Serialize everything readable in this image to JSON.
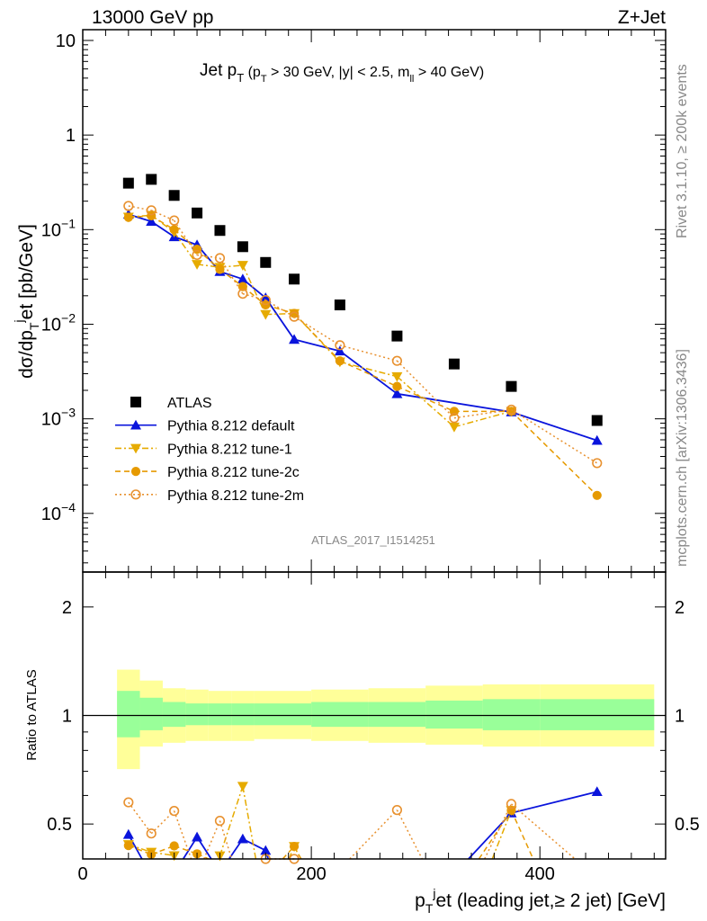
{
  "header": {
    "left": "13000 GeV pp",
    "right": "Z+Jet"
  },
  "side_text": {
    "top": "Rivet 3.1.10, ≥ 200k events",
    "bottom": "mcplots.cern.ch [arXiv:1306.3436]"
  },
  "watermark": "ATLAS_2017_I1514251",
  "title_parts": [
    {
      "t": "Jet p",
      "s": "n"
    },
    {
      "t": "T",
      "s": "sub"
    },
    {
      "t": " (p",
      "s": "n2"
    },
    {
      "t": "T",
      "s": "sub2"
    },
    {
      "t": " > 30 GeV, |y| < 2.5, m",
      "s": "n2"
    },
    {
      "t": "ll",
      "s": "sub2"
    },
    {
      "t": " > 40 GeV)",
      "s": "n2"
    }
  ],
  "chart_data": [
    {
      "type": "scatter",
      "panel": "main",
      "ylabel_parts": [
        "dσ/dp",
        "T",
        "j",
        "et [pb/GeV]"
      ],
      "yscale": "log",
      "ylim": [
        2.4e-05,
        13
      ],
      "xlim": [
        0,
        510
      ],
      "yticks": [
        {
          "v": 10,
          "label": "10"
        },
        {
          "v": 1,
          "label": "1"
        },
        {
          "v": 0.1,
          "label": "10",
          "exp": "−1"
        },
        {
          "v": 0.01,
          "label": "10",
          "exp": "−2"
        },
        {
          "v": 0.001,
          "label": "10",
          "exp": "−3"
        },
        {
          "v": 0.0001,
          "label": "10",
          "exp": "−4"
        }
      ],
      "x": [
        40,
        60,
        80,
        100,
        120,
        140,
        160,
        185,
        225,
        275,
        325,
        375,
        450
      ],
      "bin_edges": [
        30,
        50,
        70,
        90,
        110,
        130,
        150,
        170,
        200,
        250,
        300,
        350,
        400,
        500
      ],
      "series": [
        {
          "name": "ATLAS",
          "marker": "square",
          "color": "#000000",
          "line": "none",
          "values": [
            0.31,
            0.34,
            0.23,
            0.15,
            0.098,
            0.066,
            0.045,
            0.03,
            0.016,
            0.0075,
            0.0038,
            0.0022,
            0.00096
          ]
        },
        {
          "name": "Pythia 8.212 default",
          "marker": "triangle-up",
          "color": "#0a14dc",
          "line": "solid",
          "values": [
            0.145,
            0.122,
            0.084,
            0.069,
            0.036,
            0.03,
            0.019,
            0.0069,
            0.0052,
            0.00184,
            null,
            0.00118,
            0.00059
          ]
        },
        {
          "name": "Pythia 8.212 tune-1",
          "marker": "triangle-down",
          "color": "#e6ab00",
          "line": "dashdot",
          "values": [
            0.136,
            0.142,
            0.094,
            0.043,
            0.04,
            0.042,
            0.0127,
            0.013,
            0.004,
            0.0028,
            0.00082,
            0.0012,
            null
          ]
        },
        {
          "name": "Pythia 8.212 tune-2c",
          "marker": "circle",
          "color": "#e69a00",
          "line": "dashed",
          "values": [
            0.135,
            0.14,
            0.1,
            0.062,
            0.038,
            0.025,
            0.016,
            0.013,
            0.0041,
            0.0022,
            0.0012,
            0.0012,
            0.000155
          ]
        },
        {
          "name": "Pythia 8.212 tune-2m",
          "marker": "open-circle",
          "color": "#e8912f",
          "line": "dotted",
          "values": [
            0.178,
            0.16,
            0.125,
            0.054,
            0.05,
            0.021,
            0.018,
            0.012,
            0.006,
            0.0041,
            0.00102,
            0.00125,
            0.00034
          ]
        }
      ],
      "legend": "upper-left-lower"
    },
    {
      "type": "line",
      "panel": "ratio",
      "ylabel": "Ratio to ATLAS",
      "yscale": "log",
      "ylim": [
        0.4,
        2.5
      ],
      "yticks": [
        {
          "v": 2,
          "label": "2"
        },
        {
          "v": 1,
          "label": "1"
        },
        {
          "v": 0.5,
          "label": "0.5"
        }
      ],
      "xticks": [
        {
          "v": 0,
          "label": "0"
        },
        {
          "v": 200,
          "label": "200"
        },
        {
          "v": 400,
          "label": "400"
        }
      ],
      "xlabel_parts": [
        "p",
        "T",
        "j",
        "et (leading jet,≥ 2 jet) [GeV]"
      ],
      "band_total": [
        [
          1.34,
          0.71
        ],
        [
          1.25,
          0.82
        ],
        [
          1.19,
          0.84
        ],
        [
          1.18,
          0.85
        ],
        [
          1.17,
          0.85
        ],
        [
          1.17,
          0.85
        ],
        [
          1.17,
          0.86
        ],
        [
          1.17,
          0.86
        ],
        [
          1.18,
          0.85
        ],
        [
          1.19,
          0.84
        ],
        [
          1.21,
          0.83
        ],
        [
          1.22,
          0.82
        ],
        [
          1.22,
          0.82
        ]
      ],
      "band_stat": [
        [
          1.17,
          0.87
        ],
        [
          1.12,
          0.91
        ],
        [
          1.09,
          0.93
        ],
        [
          1.08,
          0.94
        ],
        [
          1.08,
          0.94
        ],
        [
          1.08,
          0.94
        ],
        [
          1.08,
          0.94
        ],
        [
          1.08,
          0.94
        ],
        [
          1.09,
          0.93
        ],
        [
          1.09,
          0.93
        ],
        [
          1.1,
          0.92
        ],
        [
          1.11,
          0.91
        ],
        [
          1.11,
          0.91
        ]
      ]
    }
  ]
}
